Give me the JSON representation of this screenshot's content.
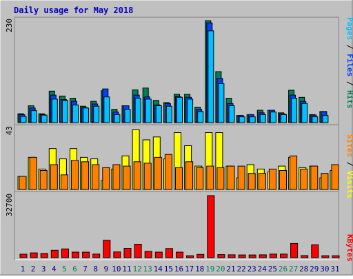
{
  "title": "Daily usage for May 2018",
  "colors": {
    "background": "#C0C0C0",
    "frame_dark": "#808080",
    "title_text": "#0000C0",
    "hits": "#00805A",
    "files": "#0040FF",
    "pages": "#00C0FF",
    "visits": "#FFFF00",
    "sites": "#FF8000",
    "kbytes": "#FF0000",
    "weekend_label": "#00805A",
    "weekday_label": "#000080"
  },
  "panels": {
    "top": {
      "max_label": "230",
      "legend": [
        {
          "text": "Pages",
          "color": "#00C0FF"
        },
        {
          "text": " / ",
          "color": "#000000"
        },
        {
          "text": "Files",
          "color": "#0040FF"
        },
        {
          "text": " / ",
          "color": "#000000"
        },
        {
          "text": "Hits",
          "color": "#00805A"
        }
      ]
    },
    "middle": {
      "max_label": "43",
      "legend": [
        {
          "text": "Sites",
          "color": "#FF8000"
        },
        {
          "text": " / ",
          "color": "#000000"
        },
        {
          "text": "Visits",
          "color": "#FFFF00"
        }
      ]
    },
    "bottom": {
      "max_label": "32700",
      "legend": [
        {
          "text": "KBytes",
          "color": "#FF0000"
        }
      ]
    }
  },
  "chart_data": {
    "type": "bar",
    "title": "Daily usage for May 2018",
    "categories": [
      "1",
      "2",
      "3",
      "4",
      "5",
      "6",
      "7",
      "8",
      "9",
      "10",
      "11",
      "12",
      "13",
      "14",
      "15",
      "16",
      "17",
      "18",
      "19",
      "20",
      "21",
      "22",
      "23",
      "24",
      "25",
      "26",
      "27",
      "28",
      "29",
      "30",
      "31"
    ],
    "weekend_days": [
      "5",
      "6",
      "12",
      "13",
      "19",
      "20",
      "26",
      "27"
    ],
    "panels": [
      {
        "name": "hits-files-pages",
        "ylim": [
          0,
          230
        ],
        "series": [
          {
            "name": "Hits",
            "values": [
              20,
              38,
              20,
              71,
              60,
              55,
              37,
              48,
              72,
              30,
              38,
              74,
              78,
              50,
              45,
              64,
              64,
              35,
              230,
              115,
              55,
              16,
              18,
              28,
              28,
              22,
              73,
              57,
              18,
              25,
              0
            ]
          },
          {
            "name": "Files",
            "values": [
              18,
              33,
              18,
              62,
              52,
              48,
              34,
              42,
              76,
              24,
              38,
              62,
              58,
              40,
              43,
              59,
              57,
              30,
              225,
              100,
              43,
              16,
              18,
              22,
              28,
              20,
              62,
              48,
              17,
              25,
              0
            ]
          },
          {
            "name": "Pages",
            "values": [
              14,
              27,
              17,
              53,
              50,
              40,
              33,
              37,
              58,
              18,
              30,
              55,
              53,
              38,
              37,
              57,
              53,
              25,
              207,
              88,
              38,
              13,
              13,
              18,
              24,
              18,
              55,
              43,
              13,
              16,
              0
            ]
          }
        ]
      },
      {
        "name": "visits-sites",
        "ylim": [
          0,
          43
        ],
        "series": [
          {
            "name": "Visits",
            "values": [
              9,
              22,
              14,
              28,
              21,
              28,
              22,
              21,
              6,
              14,
              23,
              41,
              34,
              36,
              21,
              39,
              30,
              16,
              39,
              39,
              16,
              8,
              17,
              14,
              12,
              16,
              22,
              15,
              16,
              8,
              13
            ]
          },
          {
            "name": "Sites",
            "values": [
              9,
              22,
              13,
              17,
              10,
              20,
              19,
              17,
              15,
              17,
              16,
              19,
              18,
              22,
              24,
              15,
              19,
              15,
              16,
              15,
              16,
              16,
              11,
              11,
              14,
              13,
              23,
              14,
              16,
              11,
              17
            ]
          }
        ]
      },
      {
        "name": "kbytes",
        "ylim": [
          0,
          32700
        ],
        "series": [
          {
            "name": "KBytes",
            "values": [
              1800,
              2500,
              2200,
              3900,
              4600,
              2900,
              2900,
              1900,
              9200,
              3000,
              4900,
              7100,
              3300,
              2900,
              4800,
              2900,
              1000,
              1700,
              32700,
              1600,
              1500,
              1400,
              1400,
              1500,
              1900,
              1900,
              7500,
              1100,
              6800,
              1000,
              1000
            ]
          }
        ]
      }
    ]
  }
}
